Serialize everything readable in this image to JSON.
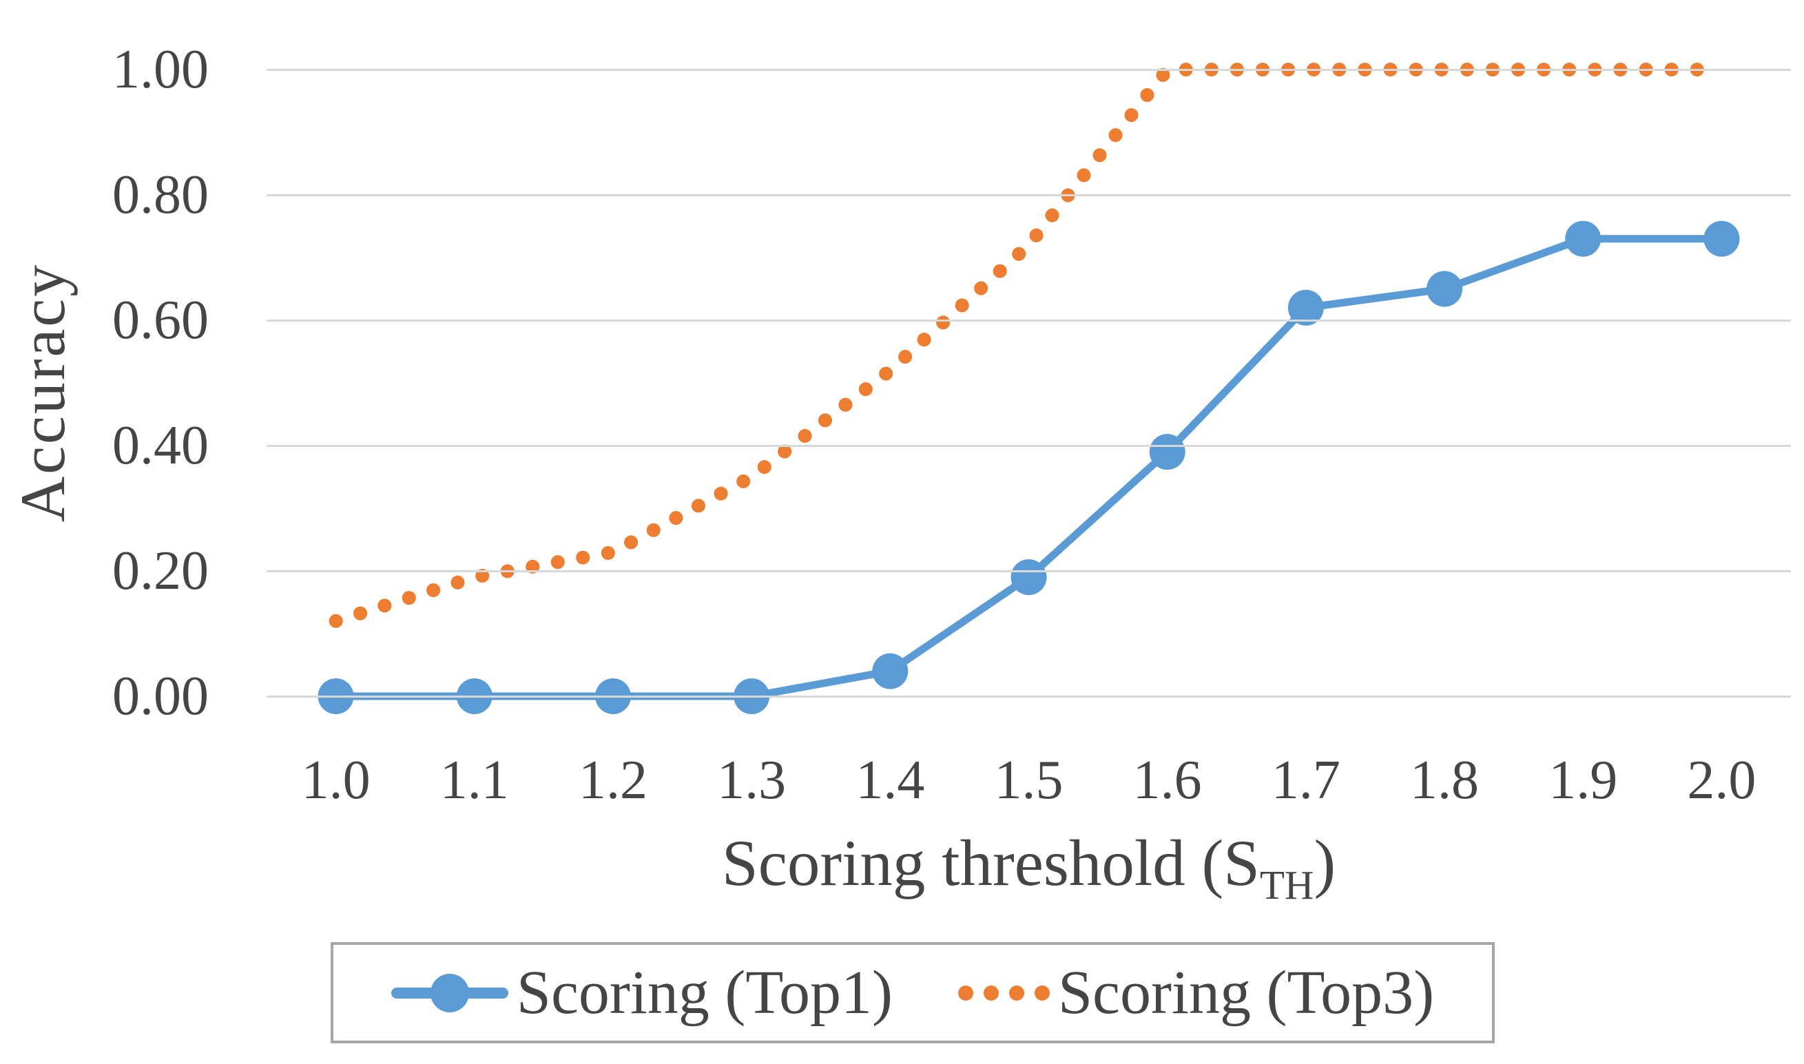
{
  "chart_data": {
    "type": "line",
    "title": "",
    "ylabel": "Accuracy",
    "xlabel": "Scoring threshold (S_TH)",
    "xlabel_parts": {
      "main": "Scoring threshold (S",
      "sub": "TH",
      "close": ")"
    },
    "x_labels": [
      "1.0",
      "1.1",
      "1.2",
      "1.3",
      "1.4",
      "1.5",
      "1.6",
      "1.7",
      "1.8",
      "1.9",
      "2.0"
    ],
    "x_values": [
      1.0,
      1.1,
      1.2,
      1.3,
      1.4,
      1.5,
      1.6,
      1.7,
      1.8,
      1.9,
      2.0
    ],
    "y_ticks": [
      {
        "label": "0.00",
        "value": 0.0
      },
      {
        "label": "0.20",
        "value": 0.2
      },
      {
        "label": "0.40",
        "value": 0.4
      },
      {
        "label": "0.60",
        "value": 0.6
      },
      {
        "label": "0.80",
        "value": 0.8
      },
      {
        "label": "1.00",
        "value": 1.0
      }
    ],
    "ylim": [
      0.0,
      1.0
    ],
    "grid": true,
    "legend_position": "bottom",
    "series": [
      {
        "name": "Scoring (Top1)",
        "color": "#5B9BD5",
        "line_style": "solid",
        "marker": "circle",
        "values": [
          0.0,
          0.0,
          0.0,
          0.0,
          0.04,
          0.19,
          0.39,
          0.62,
          0.65,
          0.73,
          0.73
        ]
      },
      {
        "name": "Scoring (Top3)",
        "color": "#ED7D31",
        "line_style": "dotted",
        "marker": "none",
        "values": [
          0.12,
          0.19,
          0.23,
          0.35,
          0.52,
          0.72,
          1.0,
          1.0,
          1.0,
          1.0,
          1.0
        ]
      }
    ],
    "colors": {
      "gridline": "#D9D9D9",
      "text": "#454545",
      "legend_border": "#A6A6A6",
      "background": "#FFFFFF"
    }
  }
}
